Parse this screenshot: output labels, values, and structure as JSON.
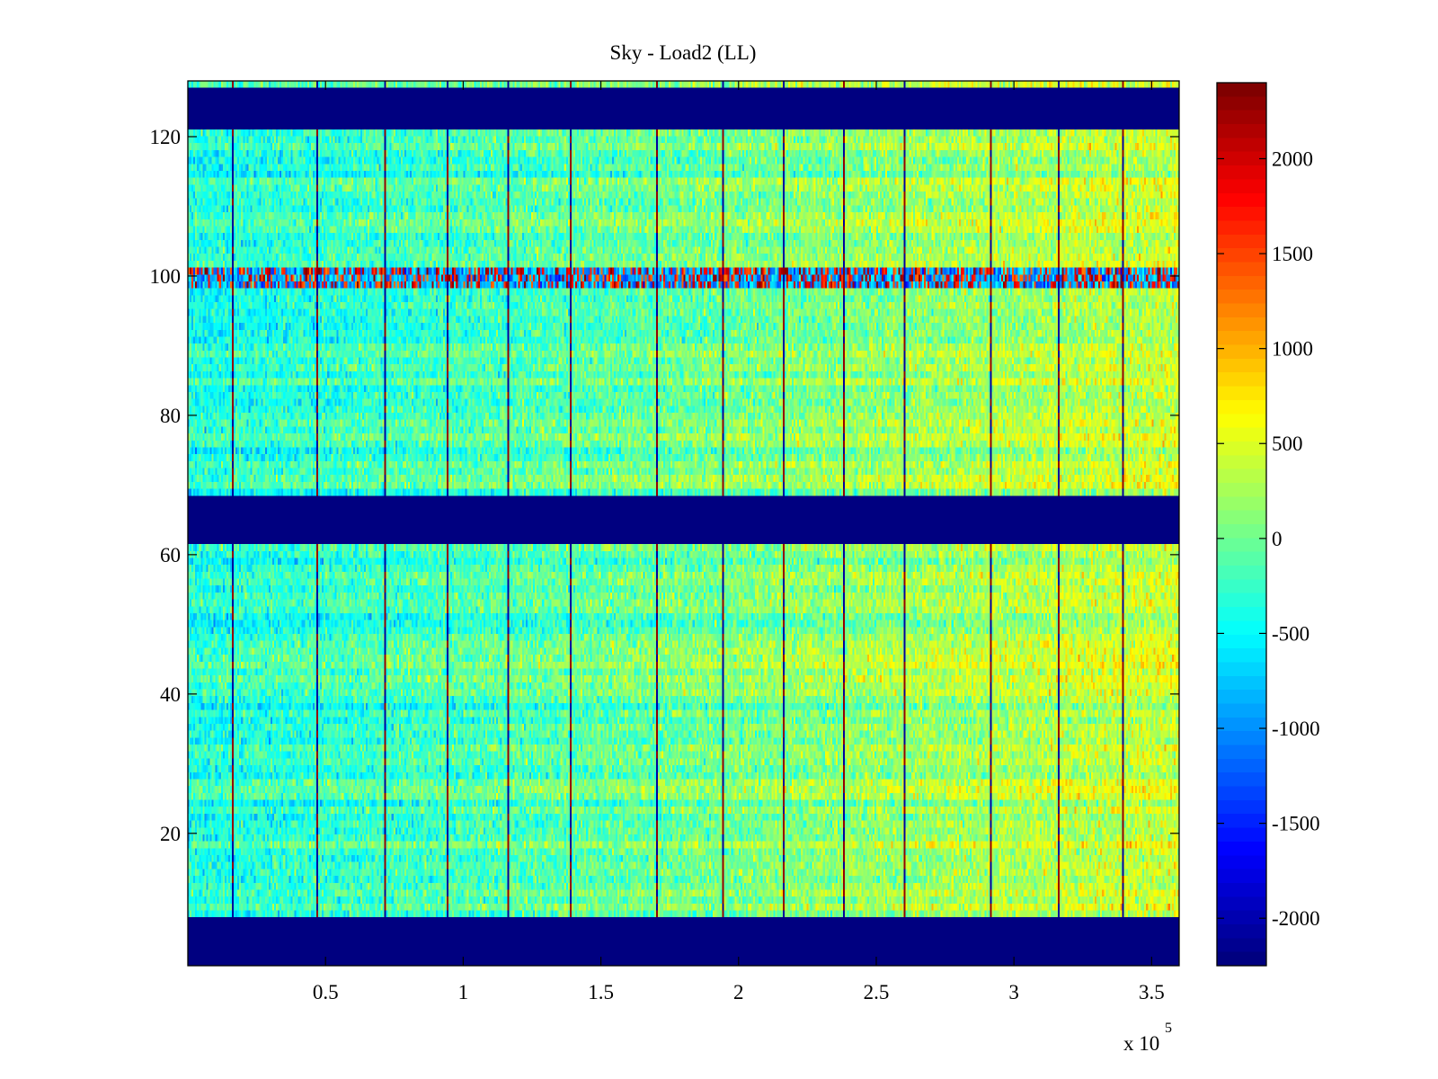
{
  "chart_data": {
    "type": "heatmap",
    "title": "Sky - Load2 (LL)",
    "xlabel": "",
    "ylabel": "",
    "x_exponent_label": "x 10",
    "x_exponent_power": "5",
    "xlim": [
      0,
      3.6
    ],
    "ylim": [
      1,
      128
    ],
    "x_ticks": [
      0.5,
      1,
      1.5,
      2,
      2.5,
      3,
      3.5
    ],
    "x_tick_labels": [
      "0.5",
      "1",
      "1.5",
      "2",
      "2.5",
      "3",
      "3.5"
    ],
    "y_ticks": [
      20,
      40,
      60,
      80,
      100,
      120
    ],
    "y_tick_labels": [
      "20",
      "40",
      "60",
      "80",
      "100",
      "120"
    ],
    "colorbar": {
      "colormap": "jet",
      "clim": [
        -2250,
        2400
      ],
      "ticks": [
        -2000,
        -1500,
        -1000,
        -500,
        0,
        500,
        1000,
        1500,
        2000
      ],
      "tick_labels": [
        "-2000",
        "-1500",
        "-1000",
        "-500",
        "0",
        "500",
        "1000",
        "1500",
        "2000"
      ]
    },
    "masked_value": -2250,
    "masked_row_ranges": [
      [
        1,
        8
      ],
      [
        62,
        69
      ],
      [
        122,
        128
      ]
    ],
    "data_row_ranges": [
      [
        8,
        62
      ],
      [
        69,
        122
      ]
    ],
    "spike_columns_x1e5": [
      0.16,
      0.47,
      0.71,
      0.94,
      1.16,
      1.39,
      1.7,
      1.94,
      2.16,
      2.38,
      2.6,
      2.91,
      3.16,
      3.39
    ],
    "highlight_row": 100,
    "background_value_trend": [
      [
        0,
        -350
      ],
      [
        1.5,
        -50
      ],
      [
        3.6,
        450
      ]
    ],
    "grid": false,
    "colors": {
      "masked": "#00008f",
      "axes": "#000000",
      "background": "#ffffff"
    }
  }
}
